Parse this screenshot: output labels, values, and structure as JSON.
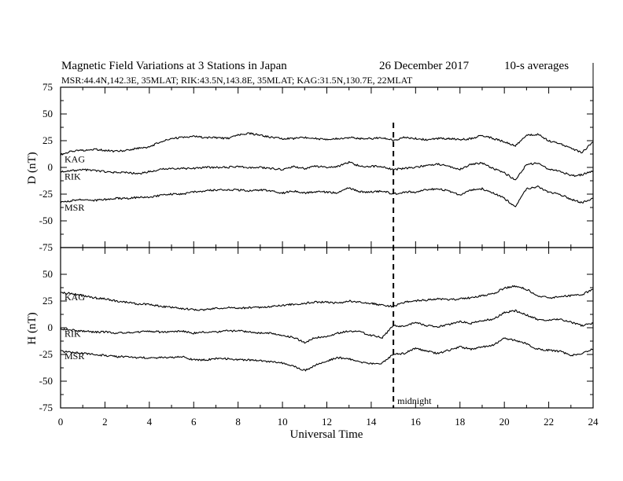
{
  "chart_data": [
    {
      "panel": "D",
      "type": "line",
      "title": "Magnetic Field Variations at 3 Stations in Japan",
      "date": "26 December 2017",
      "note": "10-s averages",
      "subtitle": "MSR:44.4N,142.3E, 35MLAT;  RIK:43.5N,143.8E, 35MLAT;  KAG:31.5N,130.7E, 22MLAT",
      "ylabel": "D (nT)",
      "xlabel": "",
      "xlim": [
        0,
        24
      ],
      "ylim": [
        -75,
        75
      ],
      "yticks": [
        -75,
        -50,
        -25,
        0,
        25,
        50,
        75
      ],
      "ytick_labels": [
        "-75",
        "-50",
        "-25",
        "0",
        "25",
        "50",
        "75"
      ],
      "series": [
        {
          "name": "KAG",
          "x": [
            0,
            0.5,
            1,
            1.5,
            2,
            2.5,
            3,
            3.5,
            4,
            4.5,
            5,
            5.5,
            6,
            6.5,
            7,
            7.5,
            8,
            8.5,
            9,
            9.5,
            10,
            10.5,
            11,
            11.5,
            12,
            12.5,
            13,
            13.5,
            14,
            14.5,
            15,
            15.5,
            16,
            16.5,
            17,
            17.5,
            18,
            18.5,
            19,
            19.5,
            20,
            20.5,
            21,
            21.5,
            22,
            22.5,
            23,
            23.5,
            24
          ],
          "values": [
            12,
            15,
            16,
            17,
            16,
            15,
            16,
            18,
            19,
            24,
            27,
            28,
            29,
            28,
            28,
            27,
            30,
            32,
            30,
            28,
            27,
            27,
            28,
            27,
            26,
            27,
            28,
            27,
            27,
            28,
            25,
            28,
            27,
            26,
            27,
            27,
            26,
            27,
            30,
            27,
            24,
            20,
            30,
            31,
            25,
            22,
            18,
            14,
            24
          ]
        },
        {
          "name": "RIK",
          "x": [
            0,
            0.5,
            1,
            1.5,
            2,
            2.5,
            3,
            3.5,
            4,
            4.5,
            5,
            5.5,
            6,
            6.5,
            7,
            7.5,
            8,
            8.5,
            9,
            9.5,
            10,
            10.5,
            11,
            11.5,
            12,
            12.5,
            13,
            13.5,
            14,
            14.5,
            15,
            15.5,
            16,
            16.5,
            17,
            17.5,
            18,
            18.5,
            19,
            19.5,
            20,
            20.5,
            21,
            21.5,
            22,
            22.5,
            23,
            23.5,
            24
          ],
          "values": [
            -4,
            -3,
            -2,
            -3,
            -4,
            -5,
            -5,
            -6,
            -4,
            -2,
            -1,
            -1,
            -1,
            0,
            0,
            0,
            1,
            0,
            0,
            -1,
            -2,
            1,
            -1,
            1,
            0,
            1,
            5,
            1,
            1,
            1,
            -2,
            -1,
            0,
            2,
            3,
            1,
            -2,
            3,
            4,
            -1,
            -5,
            -12,
            3,
            4,
            -2,
            -3,
            -8,
            -7,
            -3
          ]
        },
        {
          "name": "MSR",
          "x": [
            0,
            0.5,
            1,
            1.5,
            2,
            2.5,
            3,
            3.5,
            4,
            4.5,
            5,
            5.5,
            6,
            6.5,
            7,
            7.5,
            8,
            8.5,
            9,
            9.5,
            10,
            10.5,
            11,
            11.5,
            12,
            12.5,
            13,
            13.5,
            14,
            14.5,
            15,
            15.5,
            16,
            16.5,
            17,
            17.5,
            18,
            18.5,
            19,
            19.5,
            20,
            20.5,
            21,
            21.5,
            22,
            22.5,
            23,
            23.5,
            24
          ],
          "values": [
            -33,
            -31,
            -30,
            -31,
            -30,
            -29,
            -29,
            -28,
            -28,
            -26,
            -25,
            -25,
            -23,
            -22,
            -21,
            -21,
            -21,
            -22,
            -21,
            -22,
            -24,
            -22,
            -24,
            -23,
            -23,
            -24,
            -19,
            -23,
            -23,
            -22,
            -25,
            -23,
            -23,
            -21,
            -20,
            -22,
            -26,
            -21,
            -20,
            -24,
            -29,
            -37,
            -20,
            -18,
            -23,
            -25,
            -30,
            -33,
            -29
          ]
        }
      ],
      "annotations": [
        {
          "text": "",
          "x": 15,
          "style": "dashed vertical line"
        }
      ]
    },
    {
      "panel": "H",
      "type": "line",
      "ylabel": "H (nT)",
      "xlabel": "Universal Time",
      "xlim": [
        0,
        24
      ],
      "ylim": [
        -75,
        75
      ],
      "xticks": [
        0,
        2,
        4,
        6,
        8,
        10,
        12,
        14,
        16,
        18,
        20,
        22,
        24
      ],
      "xtick_labels": [
        "0",
        "2",
        "4",
        "6",
        "8",
        "10",
        "12",
        "14",
        "16",
        "18",
        "20",
        "22",
        "24"
      ],
      "yticks": [
        -75,
        -50,
        -25,
        0,
        25,
        50
      ],
      "ytick_labels": [
        "-75",
        "-50",
        "-25",
        "0",
        "25",
        "50"
      ],
      "series": [
        {
          "name": "KAG",
          "x": [
            0,
            0.5,
            1,
            1.5,
            2,
            2.5,
            3,
            3.5,
            4,
            4.5,
            5,
            5.5,
            6,
            6.5,
            7,
            7.5,
            8,
            8.5,
            9,
            9.5,
            10,
            10.5,
            11,
            11.5,
            12,
            12.5,
            13,
            13.5,
            14,
            14.5,
            15,
            15.5,
            16,
            16.5,
            17,
            17.5,
            18,
            18.5,
            19,
            19.5,
            20,
            20.5,
            21,
            21.5,
            22,
            22.5,
            23,
            23.5,
            24
          ],
          "values": [
            33,
            32,
            30,
            28,
            27,
            25,
            24,
            22,
            22,
            20,
            19,
            18,
            17,
            17,
            18,
            19,
            18,
            19,
            19,
            20,
            21,
            22,
            23,
            24,
            24,
            23,
            25,
            24,
            23,
            21,
            20,
            24,
            25,
            26,
            27,
            26,
            27,
            28,
            30,
            32,
            37,
            39,
            36,
            30,
            28,
            29,
            30,
            31,
            36
          ]
        },
        {
          "name": "RIK",
          "x": [
            0,
            0.5,
            1,
            1.5,
            2,
            2.5,
            3,
            3.5,
            4,
            4.5,
            5,
            5.5,
            6,
            6.5,
            7,
            7.5,
            8,
            8.5,
            9,
            9.5,
            10,
            10.5,
            11,
            11.5,
            12,
            12.5,
            13,
            13.5,
            14,
            14.5,
            15,
            15.5,
            16,
            16.5,
            17,
            17.5,
            18,
            18.5,
            19,
            19.5,
            20,
            20.5,
            21,
            21.5,
            22,
            22.5,
            23,
            23.5,
            24
          ],
          "values": [
            -1,
            -2,
            -3,
            -4,
            -4,
            -5,
            -5,
            -4,
            -3,
            -4,
            -4,
            -3,
            -5,
            -4,
            -4,
            -3,
            -3,
            -4,
            -5,
            -5,
            -7,
            -9,
            -14,
            -9,
            -8,
            -5,
            -3,
            -4,
            -7,
            -9,
            2,
            1,
            5,
            2,
            1,
            3,
            6,
            4,
            7,
            8,
            14,
            16,
            12,
            8,
            7,
            8,
            5,
            2,
            4
          ]
        },
        {
          "name": "MSR",
          "x": [
            0,
            0.5,
            1,
            1.5,
            2,
            2.5,
            3,
            3.5,
            4,
            4.5,
            5,
            5.5,
            6,
            6.5,
            7,
            7.5,
            8,
            8.5,
            9,
            9.5,
            10,
            10.5,
            11,
            11.5,
            12,
            12.5,
            13,
            13.5,
            14,
            14.5,
            15,
            15.5,
            16,
            16.5,
            17,
            17.5,
            18,
            18.5,
            19,
            19.5,
            20,
            20.5,
            21,
            21.5,
            22,
            22.5,
            23,
            23.5,
            24
          ],
          "values": [
            -22,
            -23,
            -24,
            -25,
            -26,
            -27,
            -27,
            -28,
            -28,
            -28,
            -28,
            -27,
            -30,
            -30,
            -29,
            -29,
            -30,
            -30,
            -31,
            -32,
            -33,
            -36,
            -40,
            -35,
            -31,
            -28,
            -29,
            -32,
            -34,
            -33,
            -25,
            -24,
            -19,
            -22,
            -24,
            -21,
            -18,
            -20,
            -18,
            -16,
            -10,
            -12,
            -15,
            -20,
            -21,
            -22,
            -26,
            -24,
            -20
          ]
        }
      ],
      "annotations": [
        {
          "text": "midnight",
          "x": 15,
          "style": "dashed vertical line"
        }
      ]
    }
  ]
}
